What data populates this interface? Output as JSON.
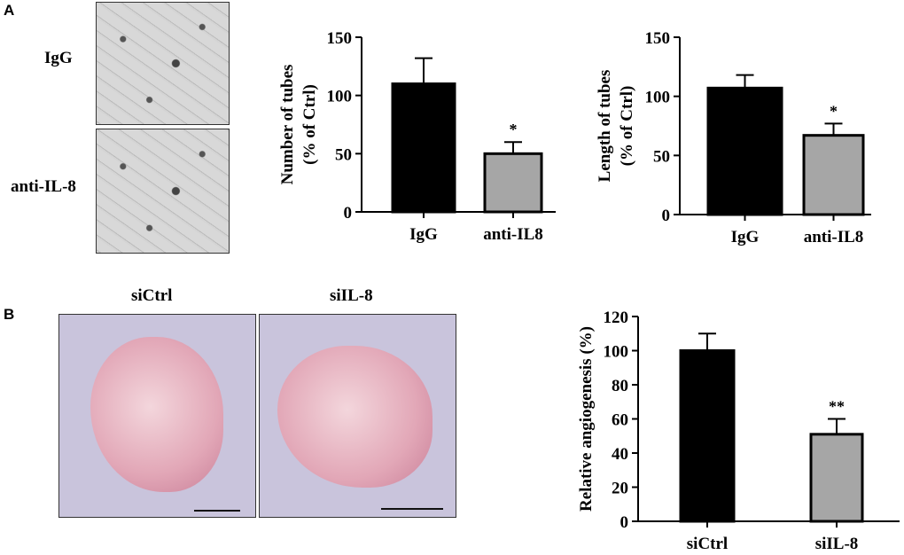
{
  "panels": {
    "a": "A",
    "b": "B"
  },
  "micrograph_labels": [
    "IgG",
    "anti-IL-8"
  ],
  "photo_labels": [
    "siCtrl",
    "siIL-8"
  ],
  "chart_data": [
    {
      "type": "bar",
      "ylabel": "Number of tubes (% of Ctrl)",
      "ylabel_lines": [
        "Number of tubes",
        "(% of Ctrl)"
      ],
      "categories": [
        "IgG",
        "anti-IL8"
      ],
      "values": [
        110,
        50
      ],
      "errors": [
        22,
        10
      ],
      "annotations": [
        "",
        "*"
      ],
      "ylim": [
        0,
        150
      ],
      "yticks": [
        0,
        50,
        100,
        150
      ],
      "colors": [
        "#000000",
        "#a6a6a6"
      ]
    },
    {
      "type": "bar",
      "ylabel": "Length of tubes (% of Ctrl)",
      "ylabel_lines": [
        "Length of tubes",
        "(% of Ctrl)"
      ],
      "categories": [
        "IgG",
        "anti-IL8"
      ],
      "values": [
        107,
        67
      ],
      "errors": [
        11,
        10
      ],
      "annotations": [
        "",
        "*"
      ],
      "ylim": [
        0,
        150
      ],
      "yticks": [
        0,
        50,
        100,
        150
      ],
      "colors": [
        "#000000",
        "#a6a6a6"
      ]
    },
    {
      "type": "bar",
      "ylabel": "Relative angiogenesis (%)",
      "ylabel_lines": [
        "Relative angiogenesis (%)"
      ],
      "categories": [
        "siCtrl",
        "siIL-8"
      ],
      "values": [
        100,
        51
      ],
      "errors": [
        10,
        9
      ],
      "annotations": [
        "",
        "**"
      ],
      "ylim": [
        0,
        120
      ],
      "yticks": [
        0,
        20,
        40,
        60,
        80,
        100,
        120
      ],
      "colors": [
        "#000000",
        "#a6a6a6"
      ]
    }
  ]
}
